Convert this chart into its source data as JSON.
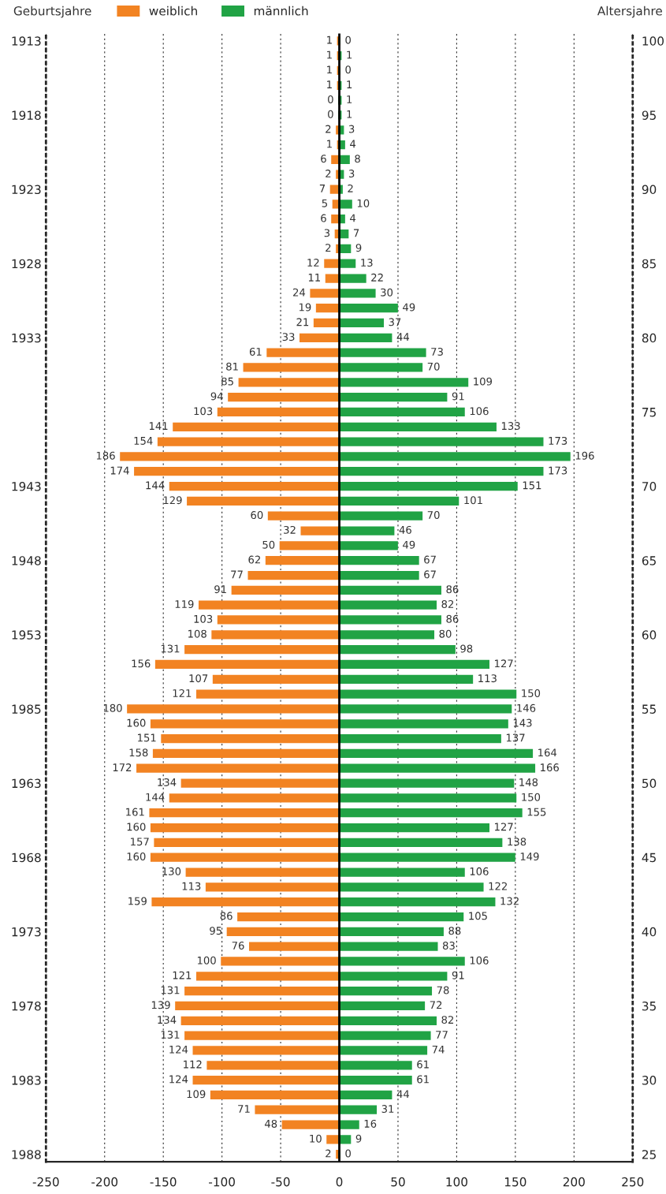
{
  "chart_data": {
    "type": "bar",
    "orientation": "horizontal",
    "ylabel": "Geburtsjahre",
    "y2label": "Altersjahre",
    "categories": [
      "1913",
      null,
      null,
      null,
      null,
      "1918",
      null,
      null,
      null,
      null,
      "1923",
      null,
      null,
      null,
      null,
      "1928",
      null,
      null,
      null,
      null,
      "1933",
      null,
      null,
      null,
      null,
      null,
      null,
      null,
      null,
      null,
      "1943",
      null,
      null,
      null,
      null,
      "1948",
      null,
      null,
      null,
      null,
      "1953",
      null,
      null,
      null,
      null,
      "1985",
      null,
      null,
      null,
      null,
      "1963",
      null,
      null,
      null,
      null,
      "1968",
      null,
      null,
      null,
      null,
      "1973",
      null,
      null,
      null,
      null,
      "1978",
      null,
      null,
      null,
      null,
      "1983",
      null,
      null,
      null,
      null,
      "1988"
    ],
    "series": [
      {
        "name": "weiblich",
        "color": "#f28322",
        "values": [
          1,
          1,
          1,
          1,
          0,
          0,
          2,
          1,
          6,
          2,
          7,
          5,
          6,
          3,
          2,
          12,
          11,
          24,
          19,
          21,
          33,
          61,
          81,
          85,
          94,
          103,
          141,
          154,
          186,
          174,
          144,
          129,
          60,
          32,
          50,
          62,
          77,
          91,
          119,
          103,
          108,
          131,
          156,
          107,
          121,
          180,
          160,
          151,
          158,
          172,
          134,
          144,
          161,
          160,
          157,
          160,
          130,
          113,
          159,
          86,
          95,
          76,
          100,
          121,
          131,
          139,
          134,
          131,
          124,
          112,
          124,
          109,
          71,
          48,
          10,
          2
        ],
        "base": [
          -1,
          -1,
          -1,
          -1,
          0,
          0,
          -2,
          -1,
          -6,
          -2,
          -7,
          -5,
          -6,
          -3,
          -2,
          -12,
          -11,
          -24,
          -19,
          -21,
          -33,
          -61,
          -81,
          -85,
          -94,
          -103,
          -141,
          -154,
          -186,
          -174,
          -144,
          -129,
          -60,
          -32,
          -50,
          -62,
          -77,
          -91,
          -119,
          -103,
          -108,
          -131,
          -156,
          -107,
          -121,
          -180,
          -160,
          -151,
          -158,
          -172,
          -134,
          -144,
          -161,
          -160,
          -157,
          -160,
          -130,
          -113,
          -159,
          -86,
          -95,
          -76,
          -100,
          -121,
          -131,
          -139,
          -134,
          -131,
          -124,
          -112,
          -124,
          -109,
          -71,
          -48,
          -10,
          -2
        ],
        "value_labels": [
          "1",
          "1",
          "1",
          "1",
          "0",
          "0",
          "2",
          "1",
          "6",
          "2",
          "7",
          "5",
          "6",
          "3",
          "2",
          "12",
          "11",
          "24",
          "19",
          "21",
          "33",
          "61",
          "81",
          "85",
          "94",
          "103",
          "141",
          "154",
          "186",
          "174",
          "144",
          "129",
          "60",
          "32",
          "50",
          "62",
          "77",
          "91",
          "119",
          "103",
          "108",
          "131",
          "156",
          "107",
          "121",
          "180",
          "160",
          "151",
          "158",
          "172",
          "134",
          "144",
          "161",
          "160",
          "157",
          "160",
          "130",
          "113",
          "159",
          "86",
          "95",
          "76",
          "100",
          "121",
          "131",
          "139",
          "134",
          "131",
          "124",
          "112",
          "124",
          "109",
          "71",
          "48",
          "10",
          "2"
        ]
      },
      {
        "name": "männlich",
        "color": "#21a345",
        "values": [
          0,
          1,
          0,
          1,
          1,
          1,
          3,
          4,
          8,
          3,
          2,
          10,
          4,
          7,
          9,
          13,
          22,
          30,
          49,
          37,
          44,
          73,
          70,
          109,
          91,
          106,
          133,
          173,
          196,
          173,
          151,
          101,
          70,
          46,
          49,
          67,
          67,
          86,
          82,
          86,
          80,
          98,
          127,
          113,
          150,
          146,
          143,
          137,
          164,
          166,
          148,
          150,
          155,
          127,
          138,
          149,
          106,
          122,
          132,
          105,
          88,
          83,
          106,
          91,
          78,
          72,
          82,
          77,
          74,
          61,
          61,
          44,
          31,
          16,
          9,
          0
        ],
        "value_labels": [
          "0",
          "1",
          "0",
          "1",
          "1",
          "1",
          "3",
          "4",
          "8",
          "3",
          "2",
          "10",
          "4",
          "7",
          "9",
          "13",
          "22",
          "30",
          "49",
          "37",
          "44",
          "73",
          "70",
          "109",
          "91",
          "106",
          "133",
          "173",
          "196",
          "173",
          "151",
          "101",
          "70",
          "46",
          "49",
          "67",
          "67",
          "86",
          "82",
          "86",
          "80",
          "98",
          "127",
          "113",
          "150",
          "146",
          "143",
          "137",
          "164",
          "166",
          "148",
          "150",
          "155",
          "127",
          "138",
          "149",
          "106",
          "122",
          "132",
          "105",
          "88",
          "83",
          "106",
          "91",
          "78",
          "72",
          "82",
          "77",
          "74",
          "61",
          "61",
          "44",
          "31",
          "16",
          "9",
          "0"
        ]
      }
    ],
    "xlim": [
      -250,
      250
    ],
    "xticks": [
      -250,
      -200,
      -150,
      -100,
      -50,
      0,
      50,
      100,
      150,
      200,
      250
    ],
    "y2lim": [
      24.5,
      100.5
    ],
    "y2ticks": [
      25,
      30,
      35,
      40,
      45,
      50,
      55,
      60,
      65,
      70,
      75,
      80,
      85,
      90,
      95,
      100
    ],
    "ref_lines": [
      {
        "axis": "x",
        "value": 0,
        "color": "#000000"
      }
    ],
    "grid": "x",
    "legend": "top"
  }
}
